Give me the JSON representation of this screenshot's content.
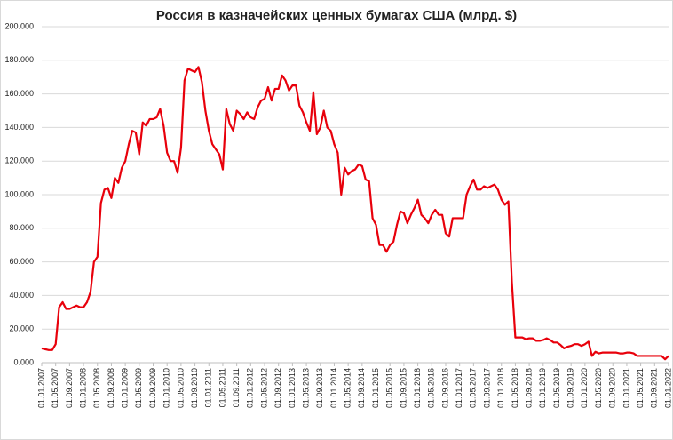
{
  "chart_data": {
    "type": "line",
    "title": "Россия в казначейских ценных бумагах США (млрд. $)",
    "categories": [
      "01.01.2007",
      null,
      null,
      null,
      "01.05.2007",
      null,
      null,
      null,
      "01.09.2007",
      null,
      null,
      null,
      "01.01.2008",
      null,
      null,
      null,
      "01.05.2008",
      null,
      null,
      null,
      "01.09.2008",
      null,
      null,
      null,
      "01.01.2009",
      null,
      null,
      null,
      "01.05.2009",
      null,
      null,
      null,
      "01.09.2009",
      null,
      null,
      null,
      "01.01.2010",
      null,
      null,
      null,
      "01.05.2010",
      null,
      null,
      null,
      "01.09.2010",
      null,
      null,
      null,
      "01.01.2011",
      null,
      null,
      null,
      "01.05.2011",
      null,
      null,
      null,
      "01.09.2011",
      null,
      null,
      null,
      "01.01.2012",
      null,
      null,
      null,
      "01.05.2012",
      null,
      null,
      null,
      "01.09.2012",
      null,
      null,
      null,
      "01.01.2013",
      null,
      null,
      null,
      "01.05.2013",
      null,
      null,
      null,
      "01.09.2013",
      null,
      null,
      null,
      "01.01.2014",
      null,
      null,
      null,
      "01.05.2014",
      null,
      null,
      null,
      "01.09.2014",
      null,
      null,
      null,
      "01.01.2015",
      null,
      null,
      null,
      "01.05.2015",
      null,
      null,
      null,
      "01.09.2015",
      null,
      null,
      null,
      "01.01.2016",
      null,
      null,
      null,
      "01.05.2016",
      null,
      null,
      null,
      "01.09.2016",
      null,
      null,
      null,
      "01.01.2017",
      null,
      null,
      null,
      "01.05.2017",
      null,
      null,
      null,
      "01.09.2017",
      null,
      null,
      null,
      "01.01.2018",
      null,
      null,
      null,
      "01.05.2018",
      null,
      null,
      null,
      "01.09.2018",
      null,
      null,
      null,
      "01.01.2019",
      null,
      null,
      null,
      "01.05.2019",
      null,
      null,
      null,
      "01.09.2019",
      null,
      null,
      null,
      "01.01.2020",
      null,
      null,
      null,
      "01.05.2020",
      null,
      null,
      null,
      "01.09.2020",
      null,
      null,
      null,
      "01.01.2021",
      null,
      null,
      null,
      "01.05.2021",
      null,
      null,
      null,
      "01.09.2021",
      null,
      null,
      null,
      "01.01.2022"
    ],
    "series": [
      {
        "color": "#e8000b",
        "values": [
          8.5,
          8,
          7.5,
          7.5,
          11,
          33,
          36,
          32,
          32,
          33,
          34,
          33,
          33,
          36,
          42,
          60,
          63,
          95,
          103,
          104,
          98,
          110,
          107,
          116,
          120,
          130,
          138,
          137,
          124,
          143,
          141,
          145,
          145,
          146,
          151,
          141,
          125,
          120,
          120,
          113,
          128,
          168,
          175,
          174,
          173,
          176,
          167,
          150,
          138,
          130,
          127,
          124,
          115,
          151,
          142,
          138,
          150,
          148,
          145,
          149,
          146,
          145,
          152,
          156,
          157,
          164,
          156,
          163,
          163,
          171,
          168,
          162,
          165,
          165,
          153,
          149,
          143,
          138,
          161,
          136,
          140,
          150,
          140,
          138,
          130,
          125,
          100,
          116,
          112,
          114,
          115,
          118,
          117,
          109,
          108,
          86,
          82,
          70,
          70,
          66,
          70,
          72,
          82,
          90,
          89,
          83,
          88,
          92,
          97,
          88,
          86,
          83,
          88,
          91,
          88,
          88,
          77,
          75,
          86,
          86,
          86,
          86,
          100,
          105,
          109,
          103,
          103,
          105,
          104,
          105,
          106,
          103,
          97,
          94,
          96,
          48,
          15,
          15,
          15,
          14,
          14.5,
          14.5,
          13,
          13,
          13.5,
          14.5,
          13.5,
          12,
          12,
          10.5,
          8.5,
          9.5,
          10,
          11,
          11,
          10,
          11,
          12.5,
          4,
          6.5,
          5.5,
          6,
          6,
          6,
          6,
          6,
          5.5,
          5.5,
          6,
          6,
          5.5,
          4,
          4,
          4,
          4,
          4,
          4,
          4,
          4,
          2,
          4
        ]
      }
    ],
    "ylim": [
      0,
      200
    ],
    "yticks": [
      {
        "value": 0,
        "label": "0.000"
      },
      {
        "value": 20,
        "label": "20.000"
      },
      {
        "value": 40,
        "label": "40.000"
      },
      {
        "value": 60,
        "label": "60.000"
      },
      {
        "value": 80,
        "label": "80.000"
      },
      {
        "value": 100,
        "label": "100.000"
      },
      {
        "value": 120,
        "label": "120.000"
      },
      {
        "value": 140,
        "label": "140.000"
      },
      {
        "value": 160,
        "label": "160.000"
      },
      {
        "value": 180,
        "label": "180.000"
      },
      {
        "value": 200,
        "label": "200.000"
      }
    ],
    "grid": true
  }
}
